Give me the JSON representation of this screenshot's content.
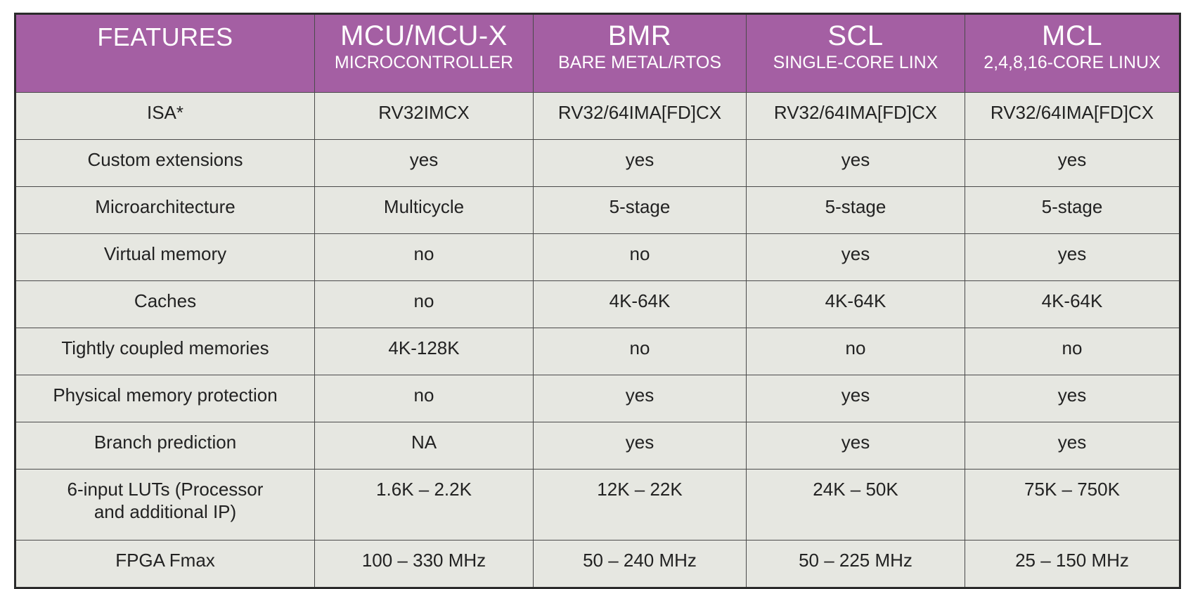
{
  "header": {
    "features": "FEATURES",
    "columns": [
      {
        "title": "MCU/MCU-X",
        "subtitle": "MICROCONTROLLER"
      },
      {
        "title": "BMR",
        "subtitle": "BARE METAL/RTOS"
      },
      {
        "title": "SCL",
        "subtitle": "SINGLE-CORE LINX"
      },
      {
        "title": "MCL",
        "subtitle": "2,4,8,16-CORE LINUX"
      }
    ]
  },
  "rows": [
    {
      "feature": "ISA*",
      "values": [
        "RV32IMCX",
        "RV32/64IMA[FD]CX",
        "RV32/64IMA[FD]CX",
        "RV32/64IMA[FD]CX"
      ]
    },
    {
      "feature": "Custom extensions",
      "values": [
        "yes",
        "yes",
        "yes",
        "yes"
      ]
    },
    {
      "feature": "Microarchitecture",
      "values": [
        "Multicycle",
        "5-stage",
        "5-stage",
        "5-stage"
      ]
    },
    {
      "feature": "Virtual memory",
      "values": [
        "no",
        "no",
        "yes",
        "yes"
      ]
    },
    {
      "feature": "Caches",
      "values": [
        "no",
        "4K-64K",
        "4K-64K",
        "4K-64K"
      ]
    },
    {
      "feature": "Tightly coupled memories",
      "values": [
        "4K-128K",
        "no",
        "no",
        "no"
      ]
    },
    {
      "feature": "Physical memory protection",
      "values": [
        "no",
        "yes",
        "yes",
        "yes"
      ]
    },
    {
      "feature": "Branch prediction",
      "values": [
        "NA",
        "yes",
        "yes",
        "yes"
      ]
    },
    {
      "feature_lines": [
        "6-input LUTs (Processor",
        "and additional IP)"
      ],
      "values": [
        "1.6K – 2.2K",
        "12K – 22K",
        "24K – 50K",
        "75K – 750K"
      ]
    },
    {
      "feature": "FPGA Fmax",
      "values": [
        "100 – 330 MHz",
        "50 – 240 MHz",
        "50 – 225 MHz",
        "25 – 150 MHz"
      ]
    }
  ],
  "colors": {
    "header_bg": "#a45fa3",
    "header_text": "#ffffff",
    "cell_bg": "#e6e7e1",
    "border": "#2b2b2b"
  }
}
